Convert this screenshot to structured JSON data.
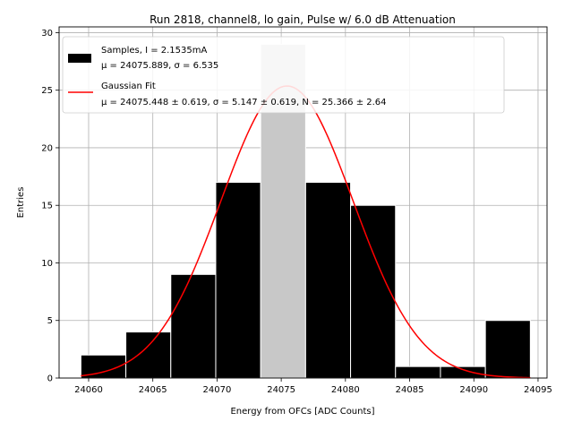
{
  "chart_data": {
    "type": "bar",
    "title": "Run 2818, channel8, lo gain, Pulse w/ 6.0 dB Attenuation",
    "xlabel": "Energy from OFCs [ADC Counts]",
    "ylabel": "Entries",
    "xlim": [
      24057.7,
      24095.7
    ],
    "ylim": [
      0,
      30.5
    ],
    "xticks": [
      24060,
      24065,
      24070,
      24075,
      24080,
      24085,
      24090,
      24095
    ],
    "yticks": [
      0,
      5,
      10,
      15,
      20,
      25,
      30
    ],
    "grid": true,
    "legend_position": "top-left",
    "bin_edges": [
      24059.4,
      24062.9,
      24066.4,
      24069.9,
      24073.4,
      24076.9,
      24080.4,
      24083.9,
      24087.4,
      24090.9,
      24094.4
    ],
    "counts": [
      2,
      4,
      9,
      17,
      29,
      17,
      15,
      1,
      1,
      5
    ],
    "highlight_bin_index": 4,
    "colors": {
      "bar": "#000000",
      "highlight": "#c8c8c8",
      "bar_edge": "#ffffff",
      "fit": "#ff0000",
      "grid": "#b0b0b0"
    },
    "fit": {
      "mu": 24075.448,
      "sigma": 5.147,
      "N": 25.366,
      "x_range": [
        24059.4,
        24094.4
      ]
    },
    "legend": {
      "samples_line1": "Samples, I = 2.1535mA",
      "samples_line2": "μ = 24075.889, σ = 6.535",
      "fit_line1": "Gaussian Fit",
      "fit_line2": "μ = 24075.448 ± 0.619, σ = 5.147 ± 0.619, N = 25.366 ± 2.64"
    }
  }
}
